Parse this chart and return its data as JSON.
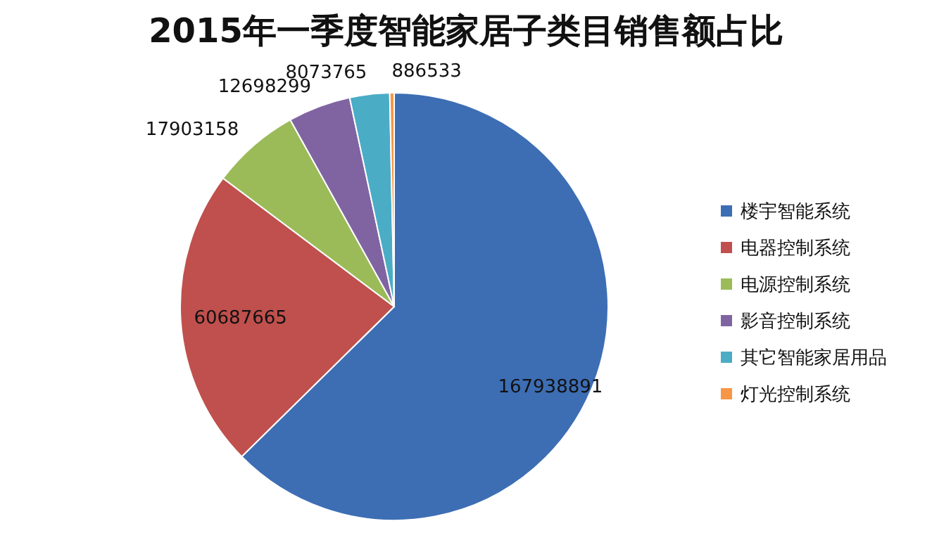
{
  "chart_data": {
    "type": "pie",
    "title": "2015年一季度智能家居子类目销售额占比",
    "categories": [
      "楼宇智能系统",
      "电器控制系统",
      "电源控制系统",
      "影音控制系统",
      "其它智能家居用品",
      "灯光控制系统"
    ],
    "values": [
      167938891,
      60687665,
      17903158,
      12698299,
      8073765,
      886533
    ],
    "colors": [
      "#3d6eb4",
      "#c0504d",
      "#9bbb59",
      "#8064a2",
      "#4bacc6",
      "#f79646"
    ],
    "data_labels": true,
    "legend": "right"
  }
}
